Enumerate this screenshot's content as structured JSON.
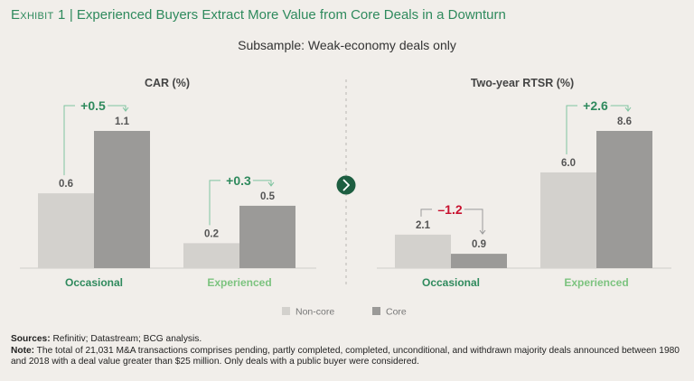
{
  "header": {
    "exhibit": "Exhibit 1",
    "separator": "|",
    "title": "Experienced Buyers Extract More Value from Core Deals in a Downturn",
    "subtitle": "Subsample: Weak-economy deals only"
  },
  "chart_data": [
    {
      "type": "bar",
      "title": "CAR (%)",
      "categories": [
        "Occasional",
        "Experienced"
      ],
      "series": [
        {
          "name": "Non-core",
          "values": [
            0.6,
            0.2
          ],
          "labels": [
            "0.6",
            "0.2"
          ]
        },
        {
          "name": "Core",
          "values": [
            1.1,
            0.5
          ],
          "labels": [
            "1.1",
            "0.5"
          ]
        }
      ],
      "differences": [
        "+0.5",
        "+0.3"
      ],
      "ylim": [
        0,
        1.2
      ]
    },
    {
      "type": "bar",
      "title": "Two-year RTSR (%)",
      "categories": [
        "Occasional",
        "Experienced"
      ],
      "series": [
        {
          "name": "Non-core",
          "values": [
            2.1,
            6.0
          ],
          "labels": [
            "2.1",
            "6.0"
          ]
        },
        {
          "name": "Core",
          "values": [
            0.9,
            8.6
          ],
          "labels": [
            "0.9",
            "8.6"
          ]
        }
      ],
      "differences": [
        "–1.2",
        "+2.6"
      ],
      "ylim": [
        0,
        9.4
      ]
    }
  ],
  "legend": [
    {
      "name": "Non-core",
      "color": "#d3d1cd"
    },
    {
      "name": "Core",
      "color": "#9b9a98"
    }
  ],
  "colors": {
    "noncore": "#d3d1cd",
    "core": "#9b9a98",
    "positive": "#2f8a5d",
    "negative": "#c8102e",
    "occasional_label": "#2f8a5d",
    "experienced_label": "#7cc37f",
    "bracket": "#7fc4a0"
  },
  "footer": {
    "sources_label": "Sources:",
    "sources_text": " Refinitiv; Datastream; BCG analysis.",
    "note_label": "Note:",
    "note_text": " The total of 21,031 M&A transactions comprises pending, partly completed, completed, unconditional, and withdrawn majority deals announced between 1980 and 2018 with a deal value greater than $25 million. Only deals with a public buyer were considered."
  }
}
